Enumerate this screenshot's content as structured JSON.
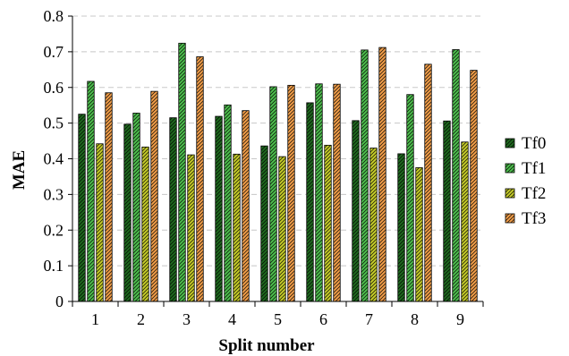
{
  "chart_data": {
    "type": "bar",
    "title": "",
    "xlabel": "Split number",
    "ylabel": "MAE",
    "ylim": [
      0,
      0.8
    ],
    "yticks": [
      "0",
      "0.1",
      "0.2",
      "0.3",
      "0.4",
      "0.5",
      "0.6",
      "0.7",
      "0.8"
    ],
    "categories": [
      "1",
      "2",
      "3",
      "4",
      "5",
      "6",
      "7",
      "8",
      "9"
    ],
    "grid": "horizontal-dashed",
    "legend_position": "right",
    "series": [
      {
        "name": "Tf0",
        "color": "#1f6b1f",
        "values": [
          0.525,
          0.497,
          0.515,
          0.519,
          0.436,
          0.557,
          0.507,
          0.414,
          0.506
        ]
      },
      {
        "name": "Tf1",
        "color": "#4fc24f",
        "values": [
          0.617,
          0.528,
          0.724,
          0.551,
          0.602,
          0.61,
          0.705,
          0.58,
          0.706
        ]
      },
      {
        "name": "Tf2",
        "color": "#c8cf2a",
        "values": [
          0.442,
          0.433,
          0.411,
          0.413,
          0.406,
          0.438,
          0.43,
          0.375,
          0.447
        ]
      },
      {
        "name": "Tf3",
        "color": "#f5a04a",
        "values": [
          0.585,
          0.589,
          0.686,
          0.535,
          0.606,
          0.609,
          0.712,
          0.665,
          0.648
        ]
      }
    ]
  }
}
